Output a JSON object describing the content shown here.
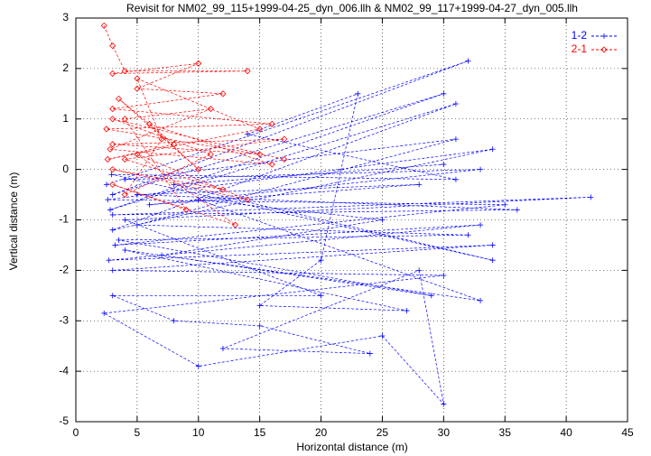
{
  "chart_data": {
    "type": "scatter",
    "title": "Revisit for NM02_99_115+1999-04-25_dyn_006.llh & NM02_99_117+1999-04-27_dyn_005.llh",
    "x_label": "Horizontal distance (m)",
    "y_label": "Vertical distance (m)",
    "xlim": [
      0,
      45
    ],
    "ylim": [
      -5,
      3
    ],
    "xticks": [
      0,
      5,
      10,
      15,
      20,
      25,
      30,
      35,
      40,
      45
    ],
    "yticks": [
      -5,
      -4,
      -3,
      -2,
      -1,
      0,
      1,
      2,
      3
    ],
    "grid": true,
    "legend": "top-right",
    "series": [
      {
        "name": "1-2",
        "color": "#0000ff",
        "marker": "plus",
        "x": [
          2.5,
          32,
          3,
          30,
          2.8,
          31,
          3,
          34,
          2.6,
          35,
          3.2,
          33,
          2.7,
          34,
          3,
          30,
          2.3,
          10,
          25,
          30,
          28,
          12,
          24,
          15,
          8,
          3,
          20,
          4,
          42,
          3,
          36,
          5,
          28,
          6,
          33,
          4,
          31,
          5,
          32,
          3.5,
          29,
          7,
          25,
          10,
          33,
          4,
          27,
          15,
          20,
          23,
          14,
          31,
          2.9,
          34,
          8,
          30
        ],
        "values": [
          -0.3,
          2.15,
          -0.5,
          1.5,
          -0.8,
          1.3,
          -1.2,
          0.4,
          -0.6,
          -0.7,
          -1.5,
          -1.1,
          -1.8,
          -1.5,
          -2.0,
          -2.1,
          -2.85,
          -3.9,
          -3.3,
          -4.65,
          -2.0,
          -3.55,
          -3.65,
          -3.1,
          -3.0,
          -2.5,
          -2.5,
          -1.0,
          -0.55,
          -0.9,
          -0.8,
          -0.5,
          -0.3,
          -0.7,
          0.0,
          -0.2,
          0.6,
          -1.1,
          -1.3,
          -1.4,
          -2.5,
          -1.7,
          -1.0,
          -0.6,
          -2.6,
          -1.6,
          -2.8,
          -2.7,
          -1.8,
          1.5,
          0.7,
          -0.2,
          -0.1,
          -1.8,
          -0.3,
          0.1
        ]
      },
      {
        "name": "2-1",
        "color": "#ff0000",
        "marker": "diamond",
        "x": [
          2.3,
          3,
          4,
          14,
          3,
          10,
          5,
          12,
          3,
          16,
          2.5,
          15,
          3,
          17,
          4,
          12,
          3,
          14,
          5,
          13,
          3,
          9,
          4,
          11,
          2.8,
          16,
          6,
          10,
          3.5,
          8,
          2.6,
          15,
          5,
          7,
          4,
          11,
          3,
          17
        ],
        "values": [
          2.85,
          2.45,
          1.95,
          1.95,
          1.9,
          2.1,
          1.6,
          1.5,
          1.2,
          0.9,
          0.8,
          0.3,
          0.5,
          0.6,
          0.2,
          -0.4,
          0.0,
          -0.6,
          0.3,
          -1.1,
          -0.3,
          -0.8,
          1.0,
          1.2,
          0.4,
          0.1,
          0.9,
          0.0,
          1.4,
          0.5,
          0.2,
          0.8,
          1.8,
          0.6,
          -0.5,
          0.3,
          1.0,
          0.2
        ]
      }
    ]
  }
}
